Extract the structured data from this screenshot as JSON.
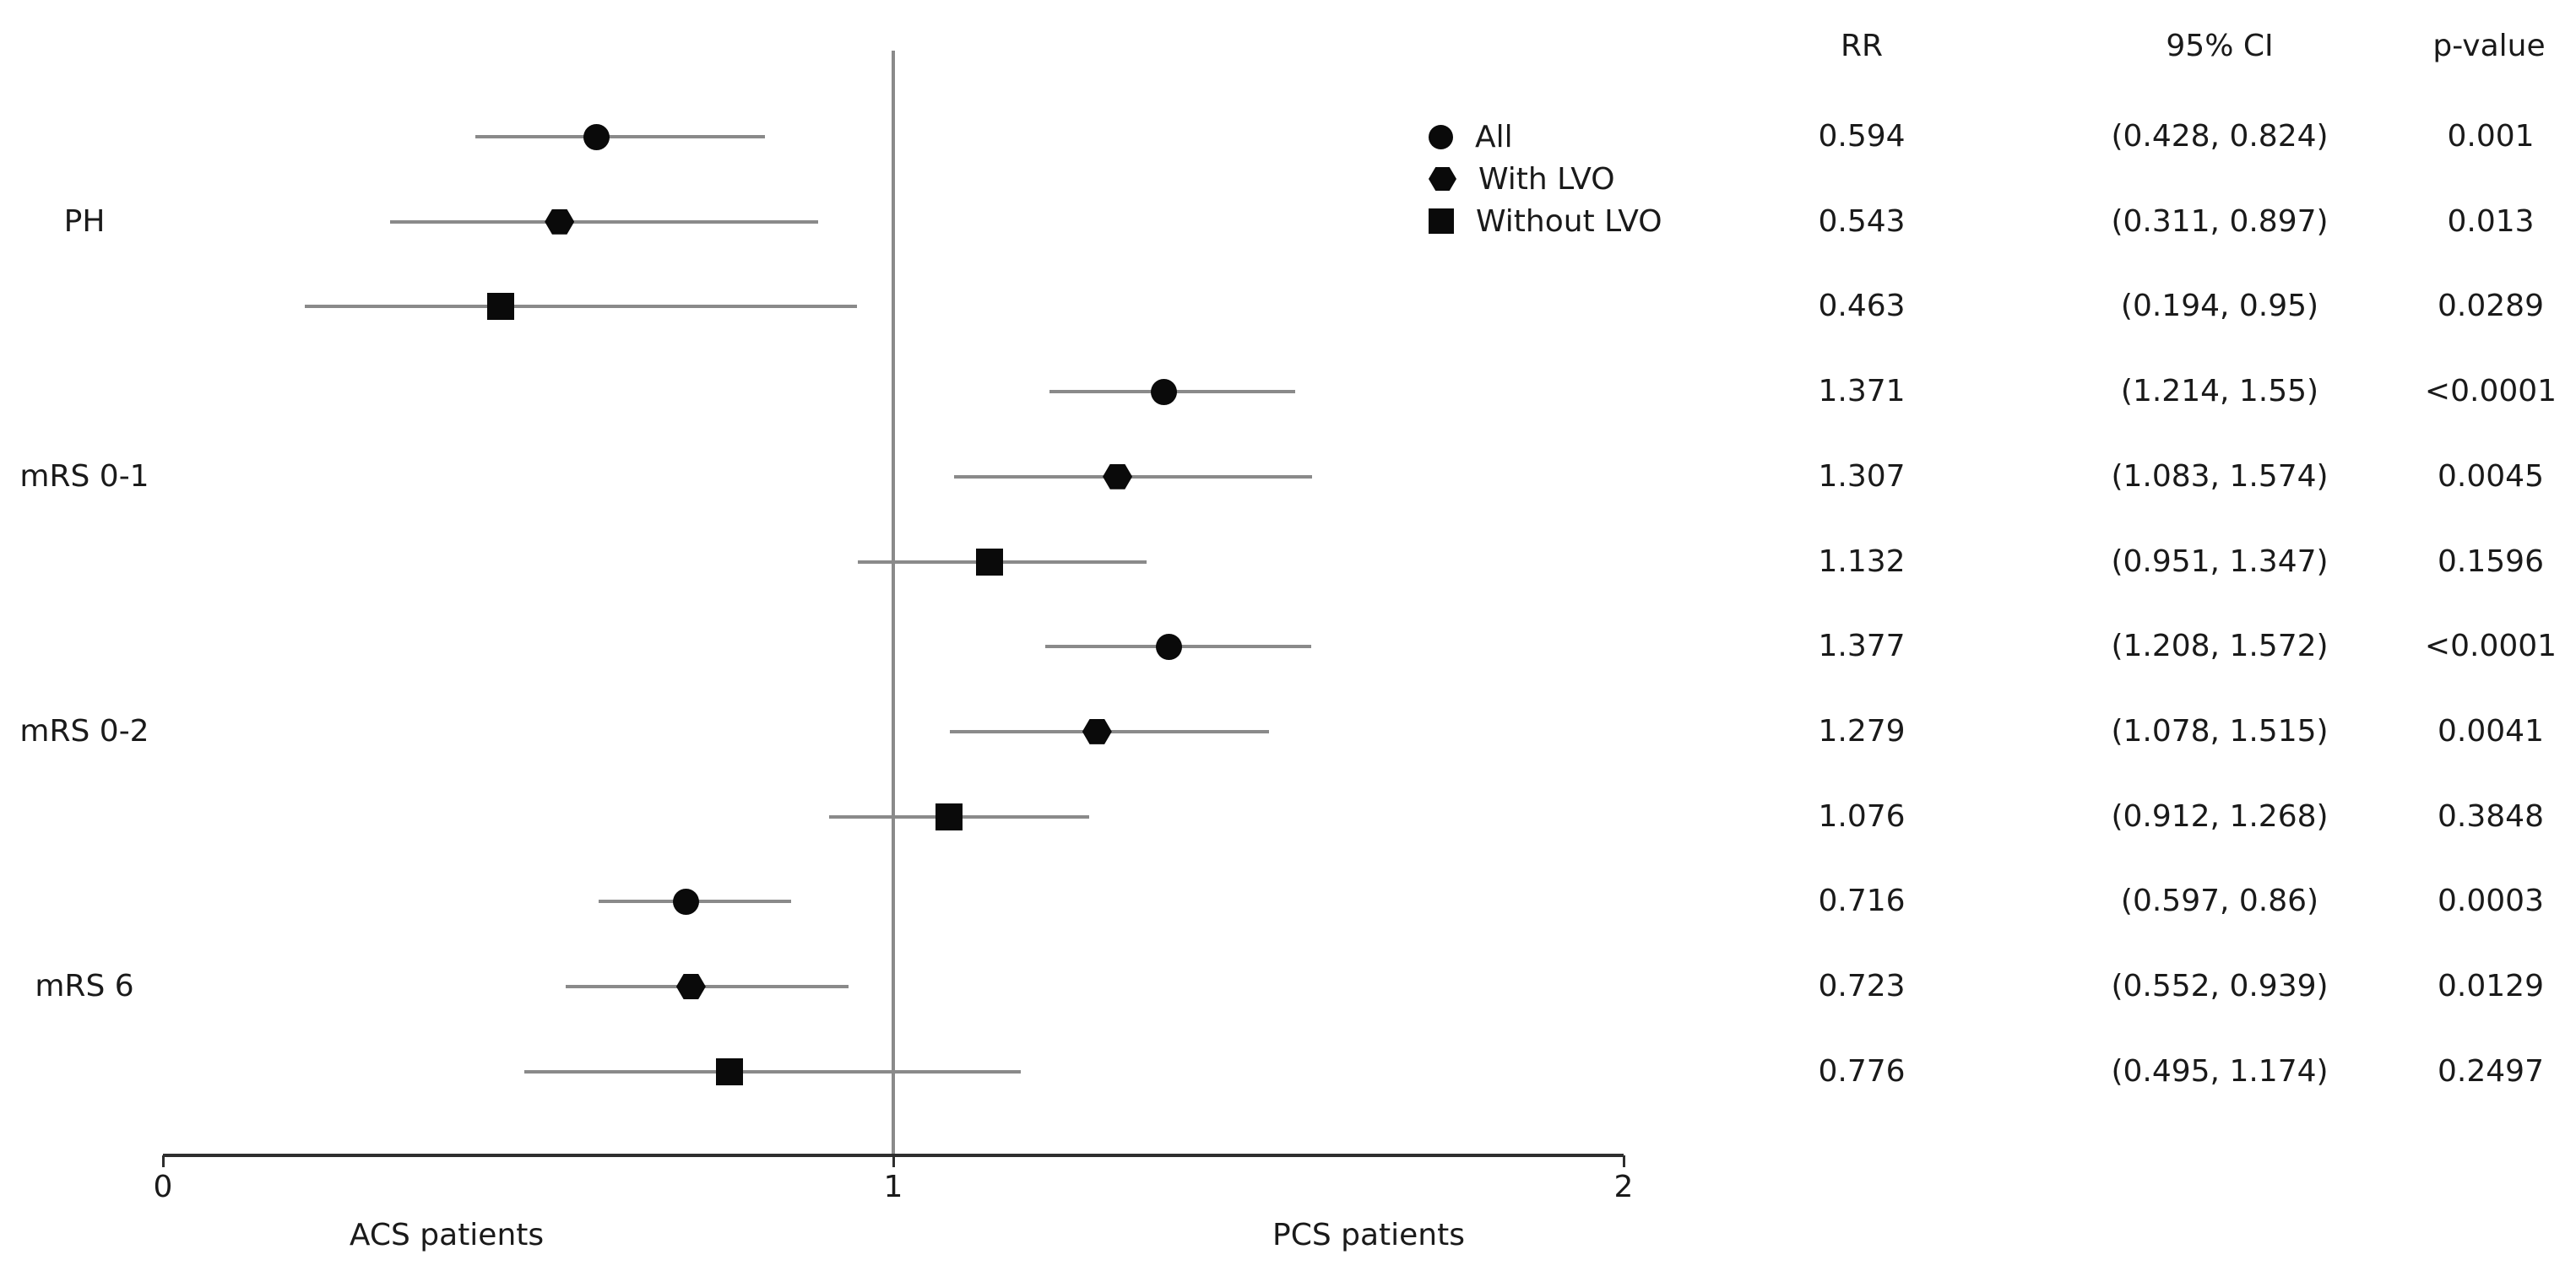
{
  "figure": {
    "background": "#ffffff",
    "legend": {
      "items": [
        {
          "label": "All",
          "marker": "circle"
        },
        {
          "label": "With LVO",
          "marker": "hexagon"
        },
        {
          "label": "Without LVO",
          "marker": "square"
        }
      ]
    }
  },
  "table": {
    "headers": [
      "RR",
      "95% CI",
      "p-value"
    ],
    "rows": [
      {
        "rr": "0.594",
        "ci": "(0.428, 0.824)",
        "p": "0.001"
      },
      {
        "rr": "0.543",
        "ci": "(0.311, 0.897)",
        "p": "0.013"
      },
      {
        "rr": "0.463",
        "ci": "(0.194, 0.95)",
        "p": "0.0289"
      },
      {
        "rr": "1.371",
        "ci": "(1.214, 1.55)",
        "p": "<0.0001"
      },
      {
        "rr": "1.307",
        "ci": "(1.083, 1.574)",
        "p": "0.0045"
      },
      {
        "rr": "1.132",
        "ci": "(0.951, 1.347)",
        "p": "0.1596"
      },
      {
        "rr": "1.377",
        "ci": "(1.208, 1.572)",
        "p": "<0.0001"
      },
      {
        "rr": "1.279",
        "ci": "(1.078, 1.515)",
        "p": "0.0041"
      },
      {
        "rr": "1.076",
        "ci": "(0.912, 1.268)",
        "p": "0.3848"
      },
      {
        "rr": "0.716",
        "ci": "(0.597, 0.86)",
        "p": "0.0003"
      },
      {
        "rr": "0.723",
        "ci": "(0.552, 0.939)",
        "p": "0.0129"
      },
      {
        "rr": "0.776",
        "ci": "(0.495, 1.174)",
        "p": "0.2497"
      }
    ]
  },
  "chart_data": {
    "type": "forest",
    "xlim": [
      0,
      2
    ],
    "xticks": [
      0,
      1,
      2
    ],
    "reference_line": 1,
    "xlabel_left": "ACS patients",
    "xlabel_right": "PCS patients",
    "series_order": [
      "All",
      "With LVO",
      "Without LVO"
    ],
    "groups": [
      {
        "label": "PH",
        "points": [
          {
            "series": "All",
            "marker": "circle",
            "rr": 0.594,
            "ci": [
              0.428,
              0.824
            ],
            "p": "0.001"
          },
          {
            "series": "With LVO",
            "marker": "hexagon",
            "rr": 0.543,
            "ci": [
              0.311,
              0.897
            ],
            "p": "0.013"
          },
          {
            "series": "Without LVO",
            "marker": "square",
            "rr": 0.463,
            "ci": [
              0.194,
              0.95
            ],
            "p": "0.0289"
          }
        ]
      },
      {
        "label": "mRS 0-1",
        "points": [
          {
            "series": "All",
            "marker": "circle",
            "rr": 1.371,
            "ci": [
              1.214,
              1.55
            ],
            "p": "<0.0001"
          },
          {
            "series": "With LVO",
            "marker": "hexagon",
            "rr": 1.307,
            "ci": [
              1.083,
              1.574
            ],
            "p": "0.0045"
          },
          {
            "series": "Without LVO",
            "marker": "square",
            "rr": 1.132,
            "ci": [
              0.951,
              1.347
            ],
            "p": "0.1596"
          }
        ]
      },
      {
        "label": "mRS 0-2",
        "points": [
          {
            "series": "All",
            "marker": "circle",
            "rr": 1.377,
            "ci": [
              1.208,
              1.572
            ],
            "p": "<0.0001"
          },
          {
            "series": "With LVO",
            "marker": "hexagon",
            "rr": 1.279,
            "ci": [
              1.078,
              1.515
            ],
            "p": "0.0041"
          },
          {
            "series": "Without LVO",
            "marker": "square",
            "rr": 1.076,
            "ci": [
              0.912,
              1.268
            ],
            "p": "0.3848"
          }
        ]
      },
      {
        "label": "mRS 6",
        "points": [
          {
            "series": "All",
            "marker": "circle",
            "rr": 0.716,
            "ci": [
              0.597,
              0.86
            ],
            "p": "0.0003"
          },
          {
            "series": "With LVO",
            "marker": "hexagon",
            "rr": 0.723,
            "ci": [
              0.552,
              0.939
            ],
            "p": "0.0129"
          },
          {
            "series": "Without LVO",
            "marker": "square",
            "rr": 0.776,
            "ci": [
              0.495,
              1.174
            ],
            "p": "0.2497"
          }
        ]
      }
    ],
    "colors": {
      "marker": "#0a0a0a",
      "ci_line": "#8a8a8a",
      "reference_line": "#8a8a8a",
      "axis": "#2e2e2e"
    }
  }
}
